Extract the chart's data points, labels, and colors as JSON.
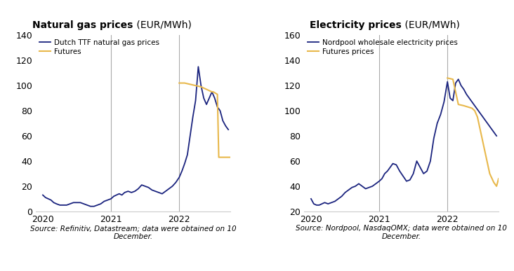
{
  "gas_title_bold": "Natural gas prices",
  "gas_title_normal": " (EUR/MWh)",
  "elec_title_bold": "Electricity prices",
  "elec_title_normal": " (EUR/MWh)",
  "gas_source": "Source: Refinitiv, Datastream; data were obtained on 10\nDecember.",
  "elec_source": "Source: Nordpool, NasdaqOMX; data were obtained on 10\nDecember.",
  "gas_legend1": "Dutch TTF natural gas prices",
  "gas_legend2": "Futures",
  "elec_legend1": "Nordpool wholesale electricity prices",
  "elec_legend2": "Futures prices",
  "dark_navy": "#1a237e",
  "gold": "#e8b84b",
  "vline_color": "#aaaaaa",
  "background": "#ffffff",
  "gas_ylim": [
    0,
    140
  ],
  "gas_yticks": [
    0,
    20,
    40,
    60,
    80,
    100,
    120,
    140
  ],
  "elec_ylim": [
    20,
    160
  ],
  "elec_yticks": [
    20,
    40,
    60,
    80,
    100,
    120,
    140,
    160
  ],
  "gas_xlim": [
    2019.9,
    2022.75
  ],
  "elec_xlim": [
    2019.9,
    2022.75
  ],
  "gas_xticks": [
    2020,
    2021,
    2022
  ],
  "elec_xticks": [
    2020,
    2021,
    2022
  ],
  "gas_vlines": [
    2021.0,
    2022.0
  ],
  "elec_vlines": [
    2021.0,
    2022.0
  ],
  "gas_history_x": [
    2020.0,
    2020.04,
    2020.08,
    2020.12,
    2020.16,
    2020.2,
    2020.25,
    2020.3,
    2020.35,
    2020.4,
    2020.45,
    2020.5,
    2020.55,
    2020.6,
    2020.65,
    2020.7,
    2020.75,
    2020.8,
    2020.85,
    2020.9,
    2020.95,
    2021.0,
    2021.04,
    2021.08,
    2021.12,
    2021.16,
    2021.2,
    2021.25,
    2021.3,
    2021.35,
    2021.4,
    2021.45,
    2021.5,
    2021.55,
    2021.6,
    2021.65,
    2021.7,
    2021.75,
    2021.8,
    2021.85,
    2021.9,
    2021.95,
    2022.0,
    2022.04,
    2022.08,
    2022.12,
    2022.16,
    2022.2,
    2022.24,
    2022.28,
    2022.32,
    2022.36,
    2022.4,
    2022.44,
    2022.48,
    2022.52,
    2022.56,
    2022.6,
    2022.64,
    2022.68,
    2022.72
  ],
  "gas_history_y": [
    13,
    11,
    10,
    9,
    7,
    6,
    5,
    5,
    5,
    6,
    7,
    7,
    7,
    6,
    5,
    4,
    4,
    5,
    6,
    8,
    9,
    10,
    12,
    13,
    14,
    13,
    15,
    16,
    15,
    16,
    18,
    21,
    20,
    19,
    17,
    16,
    15,
    14,
    16,
    18,
    20,
    23,
    27,
    32,
    38,
    45,
    60,
    75,
    88,
    115,
    100,
    90,
    85,
    90,
    95,
    90,
    83,
    80,
    72,
    68,
    65
  ],
  "gas_futures_x": [
    2022.0,
    2022.08,
    2022.16,
    2022.24,
    2022.32,
    2022.4,
    2022.48,
    2022.5,
    2022.56,
    2022.58,
    2022.65,
    2022.7,
    2022.72,
    2022.75
  ],
  "gas_futures_y": [
    102,
    102,
    101,
    100,
    99,
    97,
    95,
    95,
    93,
    43,
    43,
    43,
    43,
    43
  ],
  "elec_history_x": [
    2020.0,
    2020.04,
    2020.08,
    2020.12,
    2020.16,
    2020.2,
    2020.25,
    2020.3,
    2020.35,
    2020.4,
    2020.45,
    2020.5,
    2020.55,
    2020.6,
    2020.65,
    2020.7,
    2020.75,
    2020.8,
    2020.85,
    2020.9,
    2020.95,
    2021.0,
    2021.04,
    2021.08,
    2021.12,
    2021.16,
    2021.2,
    2021.25,
    2021.3,
    2021.35,
    2021.4,
    2021.45,
    2021.5,
    2021.55,
    2021.6,
    2021.65,
    2021.7,
    2021.75,
    2021.8,
    2021.85,
    2021.9,
    2021.95,
    2022.0,
    2022.04,
    2022.08,
    2022.12,
    2022.16,
    2022.2,
    2022.24,
    2022.28,
    2022.32,
    2022.36,
    2022.4,
    2022.44,
    2022.48,
    2022.52,
    2022.56,
    2022.6,
    2022.64,
    2022.68,
    2022.72
  ],
  "elec_history_y": [
    30,
    26,
    25,
    25,
    26,
    27,
    26,
    27,
    28,
    30,
    32,
    35,
    37,
    39,
    40,
    42,
    40,
    38,
    39,
    40,
    42,
    44,
    46,
    50,
    52,
    55,
    58,
    57,
    52,
    48,
    44,
    45,
    50,
    60,
    55,
    50,
    52,
    60,
    78,
    90,
    97,
    107,
    123,
    110,
    108,
    122,
    125,
    120,
    117,
    113,
    110,
    107,
    104,
    101,
    98,
    95,
    92,
    89,
    86,
    83,
    80
  ],
  "elec_futures_x": [
    2022.0,
    2022.08,
    2022.16,
    2022.24,
    2022.3,
    2022.36,
    2022.4,
    2022.44,
    2022.5,
    2022.56,
    2022.62,
    2022.68,
    2022.72,
    2022.75
  ],
  "elec_futures_y": [
    126,
    125,
    105,
    104,
    103,
    102,
    100,
    95,
    80,
    65,
    50,
    43,
    40,
    46
  ]
}
